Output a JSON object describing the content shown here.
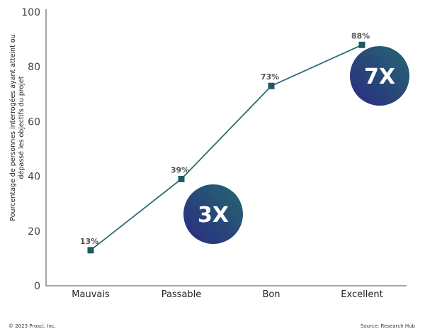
{
  "chart_data": {
    "type": "line",
    "title": "",
    "xlabel": "",
    "ylabel": "Pourcentage de personnes interrogées ayant atteint ou dépassé les objectifs du projet",
    "ylabel_lines": [
      "Pourcentage de personnes interrogées ayant atteint ou",
      "dépassé les objectifs du projet"
    ],
    "categories": [
      "Mauvais",
      "Passable",
      "Bon",
      "Excellent"
    ],
    "values": [
      13,
      39,
      73,
      88
    ],
    "data_labels": [
      "13%",
      "39%",
      "73%",
      "88%"
    ],
    "ylim": [
      0,
      100
    ],
    "yticks": [
      0,
      20,
      40,
      60,
      80,
      100
    ],
    "grid": false,
    "legend": null,
    "annotations": [
      {
        "text": "3X",
        "near": "Passable"
      },
      {
        "text": "7X",
        "near": "Excellent"
      }
    ],
    "colors": {
      "line": "#2a6b73",
      "marker": "#1f5a62",
      "badge_gradient_start": "#2b2a82",
      "badge_gradient_end": "#24686f",
      "axis": "#888888"
    }
  },
  "footer": {
    "copyright": "© 2023 Prosci, Inc.",
    "source": "Source: Research Hub"
  }
}
